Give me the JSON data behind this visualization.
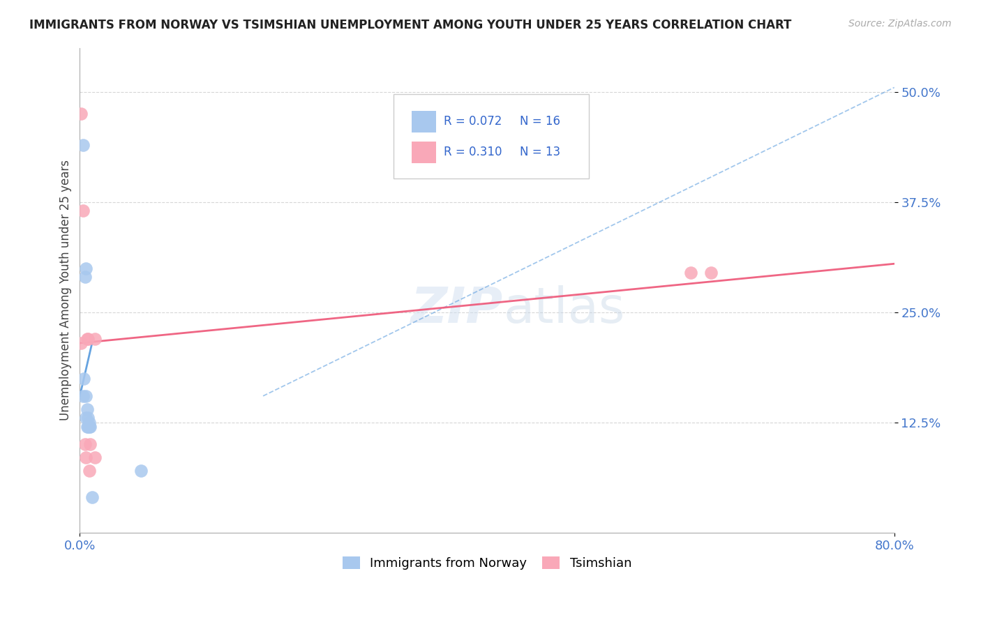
{
  "title": "IMMIGRANTS FROM NORWAY VS TSIMSHIAN UNEMPLOYMENT AMONG YOUTH UNDER 25 YEARS CORRELATION CHART",
  "source": "Source: ZipAtlas.com",
  "ylabel": "Unemployment Among Youth under 25 years",
  "xlim": [
    0.0,
    0.8
  ],
  "ylim": [
    0.0,
    0.55
  ],
  "xticks": [
    0.0,
    0.8
  ],
  "xticklabels": [
    "0.0%",
    "80.0%"
  ],
  "yticks": [
    0.125,
    0.25,
    0.375,
    0.5
  ],
  "yticklabels": [
    "12.5%",
    "25.0%",
    "37.5%",
    "50.0%"
  ],
  "background_color": "#ffffff",
  "norway_color": "#a8c8ee",
  "tsimshian_color": "#f9a8b8",
  "norway_line_color": "#5599dd",
  "tsimshian_line_color": "#ee5577",
  "legend_norway_r": "0.072",
  "legend_norway_n": "16",
  "legend_tsimshian_r": "0.310",
  "legend_tsimshian_n": "13",
  "norway_scatter_x": [
    0.003,
    0.004,
    0.005,
    0.006,
    0.006,
    0.006,
    0.007,
    0.007,
    0.008,
    0.008,
    0.009,
    0.009,
    0.01,
    0.012,
    0.06,
    0.003
  ],
  "norway_scatter_y": [
    0.44,
    0.175,
    0.29,
    0.3,
    0.155,
    0.13,
    0.14,
    0.12,
    0.12,
    0.13,
    0.125,
    0.12,
    0.12,
    0.04,
    0.07,
    0.155
  ],
  "tsimshian_scatter_x": [
    0.001,
    0.001,
    0.003,
    0.005,
    0.006,
    0.007,
    0.008,
    0.009,
    0.01,
    0.015,
    0.015,
    0.6,
    0.62
  ],
  "tsimshian_scatter_y": [
    0.475,
    0.215,
    0.365,
    0.1,
    0.085,
    0.22,
    0.22,
    0.07,
    0.1,
    0.085,
    0.22,
    0.295,
    0.295
  ],
  "norway_trend_x": [
    0.0,
    0.012
  ],
  "norway_trend_y": [
    0.155,
    0.215
  ],
  "tsimshian_trend_x": [
    0.0,
    0.8
  ],
  "tsimshian_trend_y": [
    0.215,
    0.305
  ],
  "dashed_trend_x": [
    0.18,
    0.8
  ],
  "dashed_trend_y": [
    0.155,
    0.505
  ]
}
